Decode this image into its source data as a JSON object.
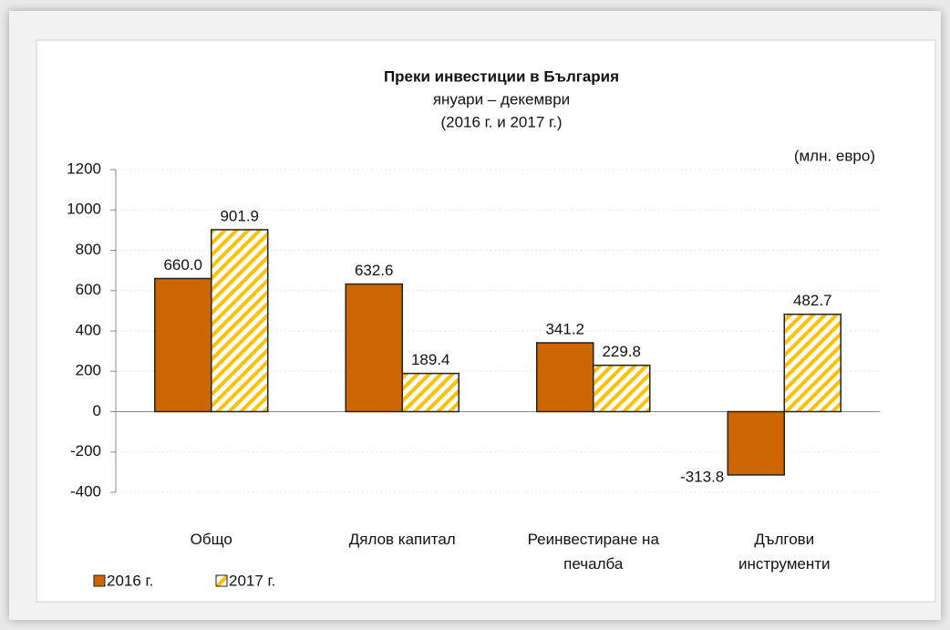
{
  "chart_data": {
    "type": "bar",
    "title": "Преки  инвестиции в България",
    "subtitle": "януари – декември",
    "subtitle2": "(2016 г. и 2017 г.)",
    "unit_label": "(млн. евро)",
    "categories": [
      "Общо",
      "Дялов капитал",
      "Реинвестиране на печалба",
      "Дългови инструменти"
    ],
    "series": [
      {
        "name": "2016 г.",
        "color": "#cc6600",
        "pattern": "solid",
        "values": [
          660.0,
          632.6,
          341.2,
          -313.8
        ],
        "value_labels": [
          "660.0",
          "632.6",
          "341.2",
          "-313.8"
        ]
      },
      {
        "name": "2017 г.",
        "color": "#ffc000",
        "pattern": "hatch",
        "values": [
          901.9,
          189.4,
          229.8,
          482.7
        ],
        "value_labels": [
          "901.9",
          "189.4",
          "229.8",
          "482.7"
        ]
      }
    ],
    "ylim": [
      -400,
      1200
    ],
    "yticks": [
      -400,
      -200,
      0,
      200,
      400,
      600,
      800,
      1000,
      1200
    ],
    "grid": true,
    "legend": "bottom-left"
  }
}
